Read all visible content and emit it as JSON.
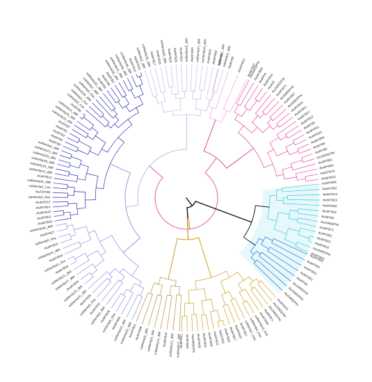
{
  "tree": {
    "root_color": "#111111",
    "clades": [
      {
        "id": "pink-clade",
        "color": "#e8409c",
        "leaves": [
          "AtuSWEEPIN",
          "AtuMYB59",
          "AtuEPIN",
          "AtuMYB10",
          "AtuE2F",
          "AtuSWEEPIN",
          "AtuMYB71",
          "AtuSWEEPIN",
          "AtuMYB87",
          "AtuSWEEPIN",
          "AtuMYB18",
          "AtuMYB21",
          "AtuMYB17",
          "AtuMYB22",
          "AtuMYB3",
          "AtuMYB11",
          "AtuMYB10",
          "AtuMYB84",
          "AtuMYB5",
          "AtuMYB4",
          "AtuSWEEPIN",
          "AtuMYB52",
          "AtuMYB50",
          "AtuMYB70",
          "AtuMYB12"
        ]
      },
      {
        "id": "light-pink-clade",
        "color": "#f2a0d8",
        "leaves": [
          "AtuMYB9",
          "AtuMYB6",
          "AtuMYB10",
          "AtuMYB37"
        ]
      },
      {
        "id": "cyan-clade",
        "color": "#3cc8dc",
        "leaves": [
          "AtuMYB08",
          "AtuMYB52",
          "AtuMYB13",
          "AtuMYB03",
          "AtuMYB50",
          "AtuMYB02",
          "AtuMYB0",
          "AtuSWEEPIN",
          "AtuMYB72",
          "AtuMYB51",
          "AtuMYB10",
          "AtuMYB18",
          "AtuSWEEPIN",
          "AtuMYB04"
        ]
      },
      {
        "id": "blue-accent-clade",
        "color": "#1f70c8",
        "leaves": [
          "AtuMYB53",
          "AtuMYB41",
          "AtuMYB52",
          "AtuMYB61",
          "AtuMYB0",
          "AtuSWEEPIN",
          "AtuSWEEPIN",
          "AtuSWEEPIN"
        ]
      },
      {
        "id": "gold-clade",
        "color": "#c8a018",
        "leaves": [
          "AtuMYB70",
          "AtuSWEEPIN",
          "AtuSWEEPIN",
          "AtuMYB71",
          "AtuMYB39",
          "subfamily10_Osa",
          "subfamily4_Osa",
          "subfamily7_Osa",
          "AtuMYB21",
          "AtuMYB25",
          "AtuMYB57",
          "AtuMYB26",
          "AtuMYB11",
          "AtuMYB22",
          "AtuMYB56",
          "AtuMYB31",
          "AtuMYB36",
          "AtuSWEEPIN",
          "AtuMYB40",
          "AtuMYB41"
        ]
      },
      {
        "id": "tan-clade",
        "color": "#b88a3c",
        "leaves": [
          "subfamily17_JBR",
          "subfamily12_JBR",
          "AtuMYB44",
          "subfamily13_JBR",
          "subfamily3_JBR",
          "subfamily5_JBR",
          "AtuMYB48",
          "AtuMYB52"
        ]
      },
      {
        "id": "lavender-clade",
        "color": "#8c8ce0",
        "leaves": [
          "subfamily23_JBR",
          "subfamily22_JBR",
          "AtuMYB55",
          "subfamily9_Osa",
          "AtuMYB36",
          "subfamily4_JBR",
          "AtuMYB33",
          "subfamily6_Osa",
          "AtuMYB28",
          "subfamily25_JBR",
          "subfamily29_JBR",
          "AtuMYB29",
          "subfamily27_JBR",
          "subfamily21_JBR",
          "AtuMYB34",
          "subfamily11_Osa",
          "AtuMYB24",
          "subfamily20_JBR",
          "AtuMYB23",
          "subfamily8_Osa",
          "AtuMYB27",
          "subfamily28_JBR"
        ]
      },
      {
        "id": "indigo-clade",
        "color": "#2a2ab0",
        "leaves": [
          "AtuMYB16",
          "AtuMYB11",
          "AtuMYB15",
          "AtuMYB14",
          "AtuMYB13",
          "subfamily3_Osa",
          "AtuTMYB8",
          "subfamily4_Cas",
          "subfamily24_JBR",
          "AtuMYB13",
          "subfamily14_JBR",
          "subfamily15_JBR",
          "subfamily39_JBR",
          "subfamily33_JBR",
          "subfamily13_JBR",
          "subfamily4_JBR",
          "AtuMYB5",
          "AtuMYB4",
          "AtuMYB2",
          "AtuMYB1",
          "AtuMYB7",
          "subfamily19_JBR",
          "subfamily16_JBR",
          "subfamily11_JBR",
          "AtuMYB6",
          "subfamily2_Cas",
          "subfamily1_Osa",
          "subfamily34_JBR",
          "subfamily5_Osa",
          "subfamily7_JBR",
          "subfamily32_JBR",
          "AtuMYB8",
          "AtuMYB9",
          "AtuMYB3",
          "subfamily30_JBR",
          "subfamily31_JBR",
          "subfamily38_JBR",
          "subfamily36_JBR",
          "AtuMYB10",
          "AtuMYB12"
        ]
      },
      {
        "id": "pale-clade",
        "color": "#c8b8e8",
        "leaves": [
          "subfamily2_JBR",
          "subfamily35_JBR",
          "AtuMYB17",
          "AtuMYB18",
          "subfamily26_JBR",
          "AtuMYB19",
          "AtuMYB20",
          "AtuMYB21",
          "subfamily18_JBR",
          "AtuMYB30",
          "subfamily37_JBR",
          "subfamily10_JBR",
          "AtuMYB31",
          "AtuMYB32",
          "subfamily1_JBR",
          "subfamily6_JBR"
        ]
      }
    ]
  }
}
